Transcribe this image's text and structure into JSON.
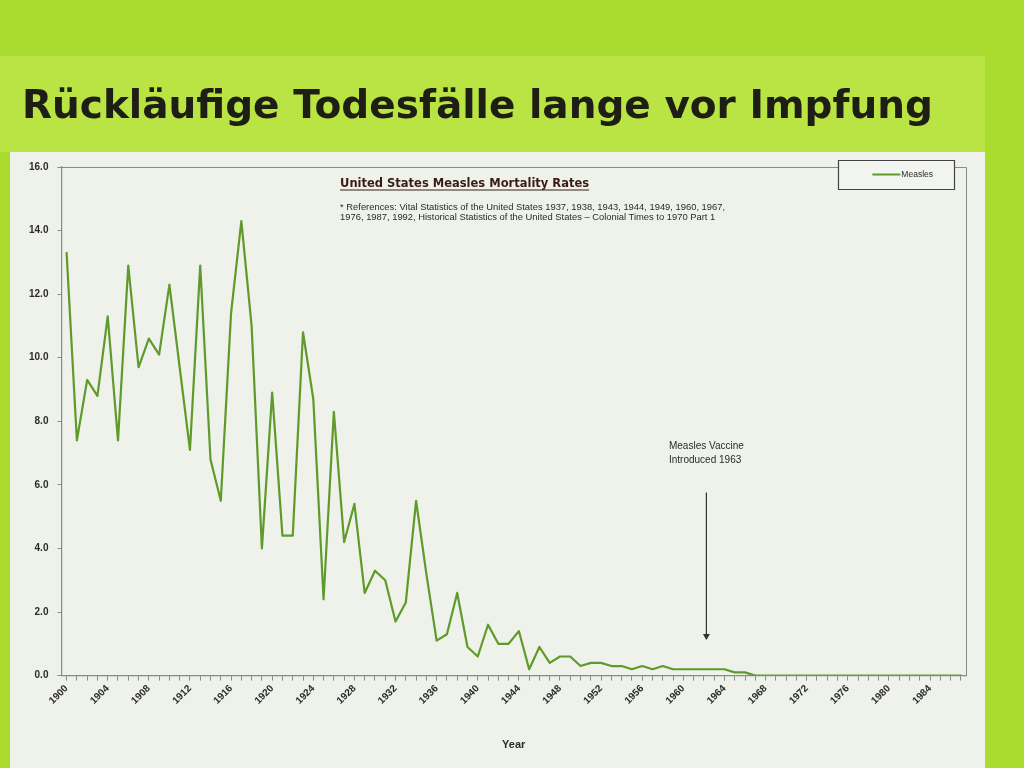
{
  "chart_data": {
    "type": "line",
    "title": "Rückläufige Todesfälle lange vor Impfung",
    "subtitle": "United States Measles Mortality Rates",
    "xlabel": "Year",
    "x": [
      1900,
      1901,
      1902,
      1903,
      1904,
      1905,
      1906,
      1907,
      1908,
      1909,
      1910,
      1911,
      1912,
      1913,
      1914,
      1915,
      1916,
      1917,
      1918,
      1919,
      1920,
      1921,
      1922,
      1923,
      1924,
      1925,
      1926,
      1927,
      1928,
      1929,
      1930,
      1931,
      1932,
      1933,
      1934,
      1935,
      1936,
      1937,
      1938,
      1939,
      1940,
      1941,
      1942,
      1943,
      1944,
      1945,
      1946,
      1947,
      1948,
      1949,
      1950,
      1951,
      1952,
      1953,
      1954,
      1955,
      1956,
      1957,
      1958,
      1959,
      1960,
      1961,
      1962,
      1963,
      1964,
      1965,
      1966,
      1967,
      1968,
      1969,
      1970,
      1971,
      1972,
      1973,
      1974,
      1975,
      1976,
      1977,
      1978,
      1979,
      1980,
      1981,
      1982,
      1983,
      1984,
      1985,
      1986,
      1987
    ],
    "series": [
      {
        "name": "Measles",
        "color": "#5f9a2a",
        "values": [
          13.3,
          7.4,
          9.3,
          8.8,
          11.3,
          7.4,
          12.9,
          9.7,
          10.6,
          10.1,
          12.3,
          9.7,
          7.1,
          12.9,
          6.8,
          5.5,
          11.4,
          14.3,
          11.0,
          4.0,
          8.9,
          4.4,
          4.4,
          10.8,
          8.7,
          2.4,
          8.3,
          4.2,
          5.4,
          2.6,
          3.3,
          3.0,
          1.7,
          2.3,
          5.5,
          3.2,
          1.1,
          1.3,
          2.6,
          0.9,
          0.6,
          1.6,
          1.0,
          1.0,
          1.4,
          0.2,
          0.9,
          0.4,
          0.6,
          0.6,
          0.3,
          0.4,
          0.4,
          0.3,
          0.3,
          0.2,
          0.3,
          0.2,
          0.3,
          0.2,
          0.2,
          0.2,
          0.2,
          0.2,
          0.2,
          0.1,
          0.1,
          0.0,
          0.0,
          0.0,
          0.0,
          0.0,
          0.0,
          0.0,
          0.0,
          0.0,
          0.0,
          0.0,
          0.0,
          0.0,
          0.0,
          0.0,
          0.0,
          0.0,
          0.0,
          0.0,
          0.0,
          0.0
        ]
      }
    ],
    "xlim": [
      1899.5,
      1987.5
    ],
    "xticks": [
      1900,
      {
        "value": 1901,
        "label": null
      },
      {
        "value": 1902,
        "label": null
      },
      {
        "value": 1903,
        "label": null
      },
      1904,
      {
        "value": 1905,
        "label": null
      },
      {
        "value": 1906,
        "label": null
      },
      {
        "value": 1907,
        "label": null
      },
      1908,
      {
        "value": 1909,
        "label": null
      },
      {
        "value": 1910,
        "label": null
      },
      {
        "value": 1911,
        "label": null
      },
      1912,
      {
        "value": 1913,
        "label": null
      },
      {
        "value": 1914,
        "label": null
      },
      {
        "value": 1915,
        "label": null
      },
      1916,
      {
        "value": 1917,
        "label": null
      },
      {
        "value": 1918,
        "label": null
      },
      {
        "value": 1919,
        "label": null
      },
      1920,
      {
        "value": 1921,
        "label": null
      },
      {
        "value": 1922,
        "label": null
      },
      {
        "value": 1923,
        "label": null
      },
      1924,
      {
        "value": 1925,
        "label": null
      },
      {
        "value": 1926,
        "label": null
      },
      {
        "value": 1927,
        "label": null
      },
      1928,
      {
        "value": 1929,
        "label": null
      },
      {
        "value": 1930,
        "label": null
      },
      {
        "value": 1931,
        "label": null
      },
      1932,
      {
        "value": 1933,
        "label": null
      },
      {
        "value": 1934,
        "label": null
      },
      {
        "value": 1935,
        "label": null
      },
      1936,
      {
        "value": 1937,
        "label": null
      },
      {
        "value": 1938,
        "label": null
      },
      {
        "value": 1939,
        "label": null
      },
      1940,
      {
        "value": 1941,
        "label": null
      },
      {
        "value": 1942,
        "label": null
      },
      {
        "value": 1943,
        "label": null
      },
      1944,
      {
        "value": 1945,
        "label": null
      },
      {
        "value": 1946,
        "label": null
      },
      {
        "value": 1947,
        "label": null
      },
      1948,
      {
        "value": 1949,
        "label": null
      },
      {
        "value": 1950,
        "label": null
      },
      {
        "value": 1951,
        "label": null
      },
      1952,
      {
        "value": 1953,
        "label": null
      },
      {
        "value": 1954,
        "label": null
      },
      {
        "value": 1955,
        "label": null
      },
      1956,
      {
        "value": 1957,
        "label": null
      },
      {
        "value": 1958,
        "label": null
      },
      {
        "value": 1959,
        "label": null
      },
      1960,
      {
        "value": 1961,
        "label": null
      },
      {
        "value": 1962,
        "label": null
      },
      {
        "value": 1963,
        "label": null
      },
      1964,
      {
        "value": 1965,
        "label": null
      },
      {
        "value": 1966,
        "label": null
      },
      {
        "value": 1967,
        "label": null
      },
      1968,
      {
        "value": 1969,
        "label": null
      },
      {
        "value": 1970,
        "label": null
      },
      {
        "value": 1971,
        "label": null
      },
      1972,
      {
        "value": 1973,
        "label": null
      },
      {
        "value": 1974,
        "label": null
      },
      {
        "value": 1975,
        "label": null
      },
      1976,
      {
        "value": 1977,
        "label": null
      },
      {
        "value": 1978,
        "label": null
      },
      {
        "value": 1979,
        "label": null
      },
      1980,
      {
        "value": 1981,
        "label": null
      },
      {
        "value": 1982,
        "label": null
      },
      {
        "value": 1983,
        "label": null
      },
      1984,
      {
        "value": 1985,
        "label": null
      },
      {
        "value": 1986,
        "label": null
      },
      {
        "value": 1987,
        "label": null
      }
    ],
    "ylim": [
      0,
      16
    ],
    "yticks": [
      {
        "value": 0,
        "label": "0.0"
      },
      {
        "value": 2,
        "label": "2.0"
      },
      {
        "value": 4,
        "label": "4.0"
      },
      {
        "value": 6,
        "label": "6.0"
      },
      {
        "value": 8,
        "label": "8.0"
      },
      {
        "value": 10,
        "label": "10.0"
      },
      {
        "value": 12,
        "label": "12.0"
      },
      {
        "value": 14,
        "label": "14.0"
      },
      {
        "value": 16,
        "label": "16.0"
      }
    ],
    "legend": "top right",
    "annotations": [
      "* References: Vital Statistics of the United States 1937, 1938, 1943, 1944, 1949, 1960, 1967, 1976, 1987, 1992, Historical Statistics of the United States – Colonial Times to 1970 Part 1",
      "Measles Vaccine Introduced 1963"
    ]
  }
}
